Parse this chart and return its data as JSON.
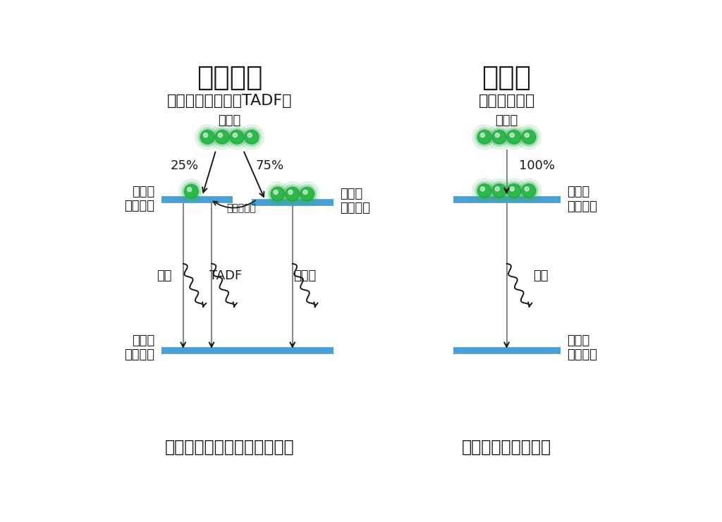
{
  "bg_color": "#ffffff",
  "title_left": "従来材料",
  "subtitle_left": "（蛍光・リン光・TADF）",
  "title_right": "新材料",
  "subtitle_right": "（ラジカル）",
  "label_excitor": "励起子",
  "label_singlet_ex1": "一重項",
  "label_singlet_ex2": "励起状態",
  "label_triplet1": "三重項",
  "label_triplet2": "励起状態",
  "label_singlet_gr1": "一重項",
  "label_singlet_gr2": "基底状態",
  "label_doublet_ex1": "二重項",
  "label_doublet_ex2": "励起状態",
  "label_doublet_gr1": "二重項",
  "label_doublet_gr2": "基底状態",
  "label_isc": "逆系間交差",
  "label_fluor": "蛍光",
  "label_tadf": "TADF",
  "label_phos": "リン光",
  "label_emit": "発光",
  "pct_25": "25%",
  "pct_75": "75%",
  "pct_100": "100%",
  "caption_left": "複雑な発光過程の制御が必要",
  "caption_right": "発光過程がシンプル",
  "bar_color": "#4a9fd4",
  "ball_fill": "#2db84d",
  "ball_edge": "#1a8c33",
  "text_color": "#1a1a1a",
  "gray_line": "#888888",
  "arrow_color": "#1a1a1a"
}
